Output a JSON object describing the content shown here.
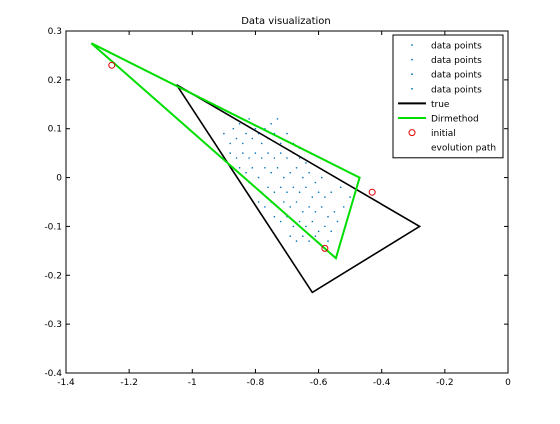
{
  "chart_data": {
    "type": "scatter",
    "title": "Data visualization",
    "xlabel": "",
    "ylabel": "",
    "xlim": [
      -1.4,
      0
    ],
    "ylim": [
      -0.4,
      0.3
    ],
    "xticks": [
      -1.4,
      -1.2,
      -1,
      -0.8,
      -0.6,
      -0.4,
      -0.2,
      0
    ],
    "xtick_labels": [
      "-1.4",
      "-1.2",
      "-1",
      "-0.8",
      "-0.6",
      "-0.4",
      "-0.2",
      "0"
    ],
    "yticks": [
      -0.4,
      -0.3,
      -0.2,
      -0.1,
      0,
      0.1,
      0.2,
      0.3
    ],
    "ytick_labels": [
      "-0.4",
      "-0.3",
      "-0.2",
      "-0.1",
      "0",
      "0.1",
      "0.2",
      "0.3"
    ],
    "grid": false,
    "legend_position": "top-right",
    "legend": [
      {
        "label": "data points",
        "marker": "dot",
        "color": "#0072bd"
      },
      {
        "label": "data points",
        "marker": "dot",
        "color": "#0072bd"
      },
      {
        "label": "data points",
        "marker": "dot",
        "color": "#0072bd"
      },
      {
        "label": "data points",
        "marker": "dot",
        "color": "#0072bd"
      },
      {
        "label": "true",
        "marker": "line",
        "color": "#000000"
      },
      {
        "label": "Dirmethod",
        "marker": "line",
        "color": "#00dd00"
      },
      {
        "label": "initial",
        "marker": "circle",
        "color": "#dd0000"
      },
      {
        "label": "evolution path",
        "marker": "none",
        "color": "#ffffff"
      }
    ],
    "series": [
      {
        "name": "data points",
        "kind": "scatter",
        "color": "#0072bd",
        "points": [
          [
            -0.87,
            0.1
          ],
          [
            -0.85,
            0.11
          ],
          [
            -0.83,
            0.09
          ],
          [
            -0.82,
            0.12
          ],
          [
            -0.8,
            0.1
          ],
          [
            -0.86,
            0.08
          ],
          [
            -0.84,
            0.07
          ],
          [
            -0.81,
            0.08
          ],
          [
            -0.79,
            0.09
          ],
          [
            -0.77,
            0.1
          ],
          [
            -0.78,
            0.07
          ],
          [
            -0.76,
            0.08
          ],
          [
            -0.74,
            0.09
          ],
          [
            -0.72,
            0.07
          ],
          [
            -0.88,
            0.05
          ],
          [
            -0.86,
            0.04
          ],
          [
            -0.84,
            0.05
          ],
          [
            -0.82,
            0.04
          ],
          [
            -0.8,
            0.05
          ],
          [
            -0.78,
            0.04
          ],
          [
            -0.76,
            0.05
          ],
          [
            -0.74,
            0.04
          ],
          [
            -0.72,
            0.05
          ],
          [
            -0.7,
            0.04
          ],
          [
            -0.68,
            0.05
          ],
          [
            -0.66,
            0.04
          ],
          [
            -0.64,
            0.03
          ],
          [
            -0.85,
            0.02
          ],
          [
            -0.83,
            0.01
          ],
          [
            -0.81,
            0.02
          ],
          [
            -0.79,
            0.0
          ],
          [
            -0.77,
            0.02
          ],
          [
            -0.75,
            0.01
          ],
          [
            -0.73,
            0.02
          ],
          [
            -0.71,
            0.0
          ],
          [
            -0.69,
            0.01
          ],
          [
            -0.67,
            0.02
          ],
          [
            -0.65,
            0.0
          ],
          [
            -0.63,
            0.01
          ],
          [
            -0.61,
            -0.01
          ],
          [
            -0.59,
            0.0
          ],
          [
            -0.82,
            -0.01
          ],
          [
            -0.8,
            -0.02
          ],
          [
            -0.78,
            -0.03
          ],
          [
            -0.76,
            -0.02
          ],
          [
            -0.74,
            -0.03
          ],
          [
            -0.72,
            -0.02
          ],
          [
            -0.7,
            -0.03
          ],
          [
            -0.68,
            -0.02
          ],
          [
            -0.66,
            -0.03
          ],
          [
            -0.64,
            -0.02
          ],
          [
            -0.62,
            -0.04
          ],
          [
            -0.6,
            -0.03
          ],
          [
            -0.58,
            -0.04
          ],
          [
            -0.56,
            -0.03
          ],
          [
            -0.79,
            -0.05
          ],
          [
            -0.77,
            -0.06
          ],
          [
            -0.75,
            -0.05
          ],
          [
            -0.73,
            -0.06
          ],
          [
            -0.71,
            -0.05
          ],
          [
            -0.69,
            -0.06
          ],
          [
            -0.67,
            -0.05
          ],
          [
            -0.65,
            -0.07
          ],
          [
            -0.63,
            -0.06
          ],
          [
            -0.61,
            -0.07
          ],
          [
            -0.59,
            -0.06
          ],
          [
            -0.57,
            -0.08
          ],
          [
            -0.55,
            -0.07
          ],
          [
            -0.74,
            -0.08
          ],
          [
            -0.72,
            -0.09
          ],
          [
            -0.7,
            -0.08
          ],
          [
            -0.68,
            -0.1
          ],
          [
            -0.66,
            -0.09
          ],
          [
            -0.64,
            -0.1
          ],
          [
            -0.62,
            -0.09
          ],
          [
            -0.6,
            -0.11
          ],
          [
            -0.58,
            -0.1
          ],
          [
            -0.56,
            -0.11
          ],
          [
            -0.54,
            -0.09
          ],
          [
            -0.69,
            -0.12
          ],
          [
            -0.67,
            -0.13
          ],
          [
            -0.65,
            -0.12
          ],
          [
            -0.63,
            -0.13
          ],
          [
            -0.61,
            -0.12
          ],
          [
            -0.59,
            -0.14
          ],
          [
            -0.57,
            -0.13
          ],
          [
            -0.52,
            -0.06
          ],
          [
            -0.5,
            -0.04
          ],
          [
            -0.53,
            -0.02
          ],
          [
            -0.88,
            0.07
          ],
          [
            -0.9,
            0.09
          ],
          [
            -0.75,
            0.11
          ],
          [
            -0.73,
            0.12
          ],
          [
            -0.7,
            0.09
          ],
          [
            -0.68,
            0.07
          ],
          [
            -0.66,
            0.06
          ]
        ]
      },
      {
        "name": "true",
        "kind": "polygon",
        "color": "#000000",
        "points": [
          [
            -1.05,
            0.19
          ],
          [
            -0.28,
            -0.1
          ],
          [
            -0.62,
            -0.235
          ],
          [
            -1.05,
            0.19
          ]
        ]
      },
      {
        "name": "Dirmethod",
        "kind": "polygon",
        "color": "#00dd00",
        "points": [
          [
            -1.32,
            0.275
          ],
          [
            -0.47,
            0.0
          ],
          [
            -0.545,
            -0.165
          ],
          [
            -1.32,
            0.275
          ]
        ]
      },
      {
        "name": "initial",
        "kind": "markers",
        "color": "#dd0000",
        "points": [
          [
            -1.255,
            0.23
          ],
          [
            -0.43,
            -0.03
          ],
          [
            -0.58,
            -0.145
          ]
        ]
      }
    ]
  }
}
